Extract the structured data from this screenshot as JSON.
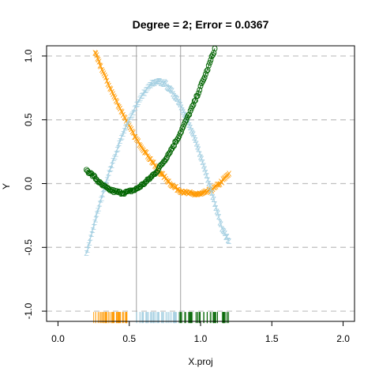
{
  "chart_data": {
    "type": "scatter",
    "title": "Degree = 2; Error = 0.0367",
    "xlabel": "X.proj",
    "ylabel": "Y",
    "xlim": [
      -0.08,
      2.08
    ],
    "ylim": [
      -1.08,
      1.08
    ],
    "x_ticks": [
      0.0,
      0.5,
      1.0,
      1.5,
      2.0
    ],
    "x_tick_labels": [
      "0.0",
      "0.5",
      "1.0",
      "1.5",
      "2.0"
    ],
    "y_ticks": [
      -1.0,
      -0.5,
      0.0,
      0.5,
      1.0
    ],
    "y_tick_labels": [
      "-1.0",
      "-0.5",
      "0.0",
      "0.5",
      "1.0"
    ],
    "hgrid": [
      -1.0,
      -0.5,
      0.0,
      0.5,
      1.0
    ],
    "vlines": [
      0.55,
      0.86
    ],
    "rug_y": -1.05,
    "series": [
      {
        "marker": "X",
        "color": "#ff9900",
        "x": [
          0.26,
          0.3,
          0.35,
          0.4,
          0.45,
          0.5,
          0.55,
          0.6,
          0.65,
          0.7,
          0.75,
          0.8,
          0.85,
          0.9,
          0.95,
          1.0,
          1.05,
          1.1,
          1.15,
          1.2
        ],
        "y": [
          1.03,
          0.92,
          0.79,
          0.67,
          0.56,
          0.45,
          0.35,
          0.27,
          0.19,
          0.11,
          0.05,
          -0.01,
          -0.05,
          -0.07,
          -0.08,
          -0.08,
          -0.06,
          -0.03,
          0.02,
          0.08
        ],
        "rug": [
          0.25,
          0.5
        ]
      },
      {
        "marker": "Z",
        "color": "#a6d0e2",
        "x": [
          0.2,
          0.25,
          0.3,
          0.35,
          0.4,
          0.45,
          0.5,
          0.55,
          0.6,
          0.65,
          0.7,
          0.75,
          0.8,
          0.85,
          0.9,
          0.95,
          1.0,
          1.05,
          1.1,
          1.15,
          1.2
        ],
        "y": [
          -0.55,
          -0.33,
          -0.13,
          0.06,
          0.22,
          0.38,
          0.5,
          0.62,
          0.71,
          0.78,
          0.8,
          0.79,
          0.72,
          0.64,
          0.52,
          0.38,
          0.22,
          0.04,
          -0.15,
          -0.35,
          -0.45
        ],
        "rug": [
          0.55,
          0.85
        ]
      },
      {
        "marker": "O",
        "color": "#006400",
        "x": [
          0.2,
          0.25,
          0.3,
          0.35,
          0.4,
          0.45,
          0.5,
          0.55,
          0.6,
          0.65,
          0.7,
          0.75,
          0.8,
          0.85,
          0.9,
          0.95,
          1.0,
          1.05,
          1.1
        ],
        "y": [
          0.11,
          0.06,
          0.0,
          -0.04,
          -0.06,
          -0.07,
          -0.06,
          -0.04,
          0.0,
          0.05,
          0.11,
          0.19,
          0.28,
          0.38,
          0.5,
          0.62,
          0.76,
          0.9,
          1.06
        ],
        "rug": [
          0.85,
          1.2
        ]
      }
    ]
  }
}
